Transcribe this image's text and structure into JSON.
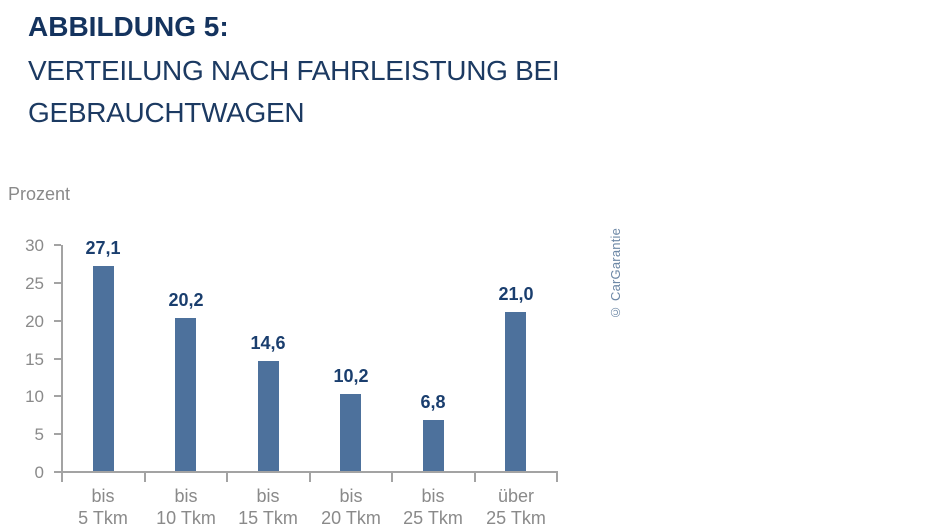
{
  "header": {
    "title": "ABBILDUNG 5:",
    "subtitle_line1": "VERTEILUNG NACH FAHRLEISTUNG BEI",
    "subtitle_line2": "GEBRAUCHTWAGEN"
  },
  "chart_data": {
    "type": "bar",
    "title": "ABBILDUNG 5: VERTEILUNG NACH FAHRLEISTUNG BEI GEBRAUCHTWAGEN",
    "ylabel": "Prozent",
    "xlabel": "",
    "categories": [
      "bis\n5 Tkm",
      "bis\n10 Tkm",
      "bis\n15 Tkm",
      "bis\n20 Tkm",
      "bis\n25 Tkm",
      "über\n25 Tkm"
    ],
    "values": [
      27.1,
      20.2,
      14.6,
      10.2,
      6.8,
      21.0
    ],
    "value_labels": [
      "27,1",
      "20,2",
      "14,6",
      "10,2",
      "6,8",
      "21,0"
    ],
    "ylim": [
      0,
      30
    ],
    "yticks": [
      0,
      5,
      10,
      15,
      20,
      25,
      30
    ],
    "grid": false,
    "legend": null,
    "colors": {
      "bar": "#4d719c",
      "value_label": "#1a3e6e",
      "axis": "#a3a3a3",
      "tick_label": "#8a8a8a",
      "title": "#14335e"
    }
  },
  "credit": {
    "text": "© CarGarantie"
  }
}
